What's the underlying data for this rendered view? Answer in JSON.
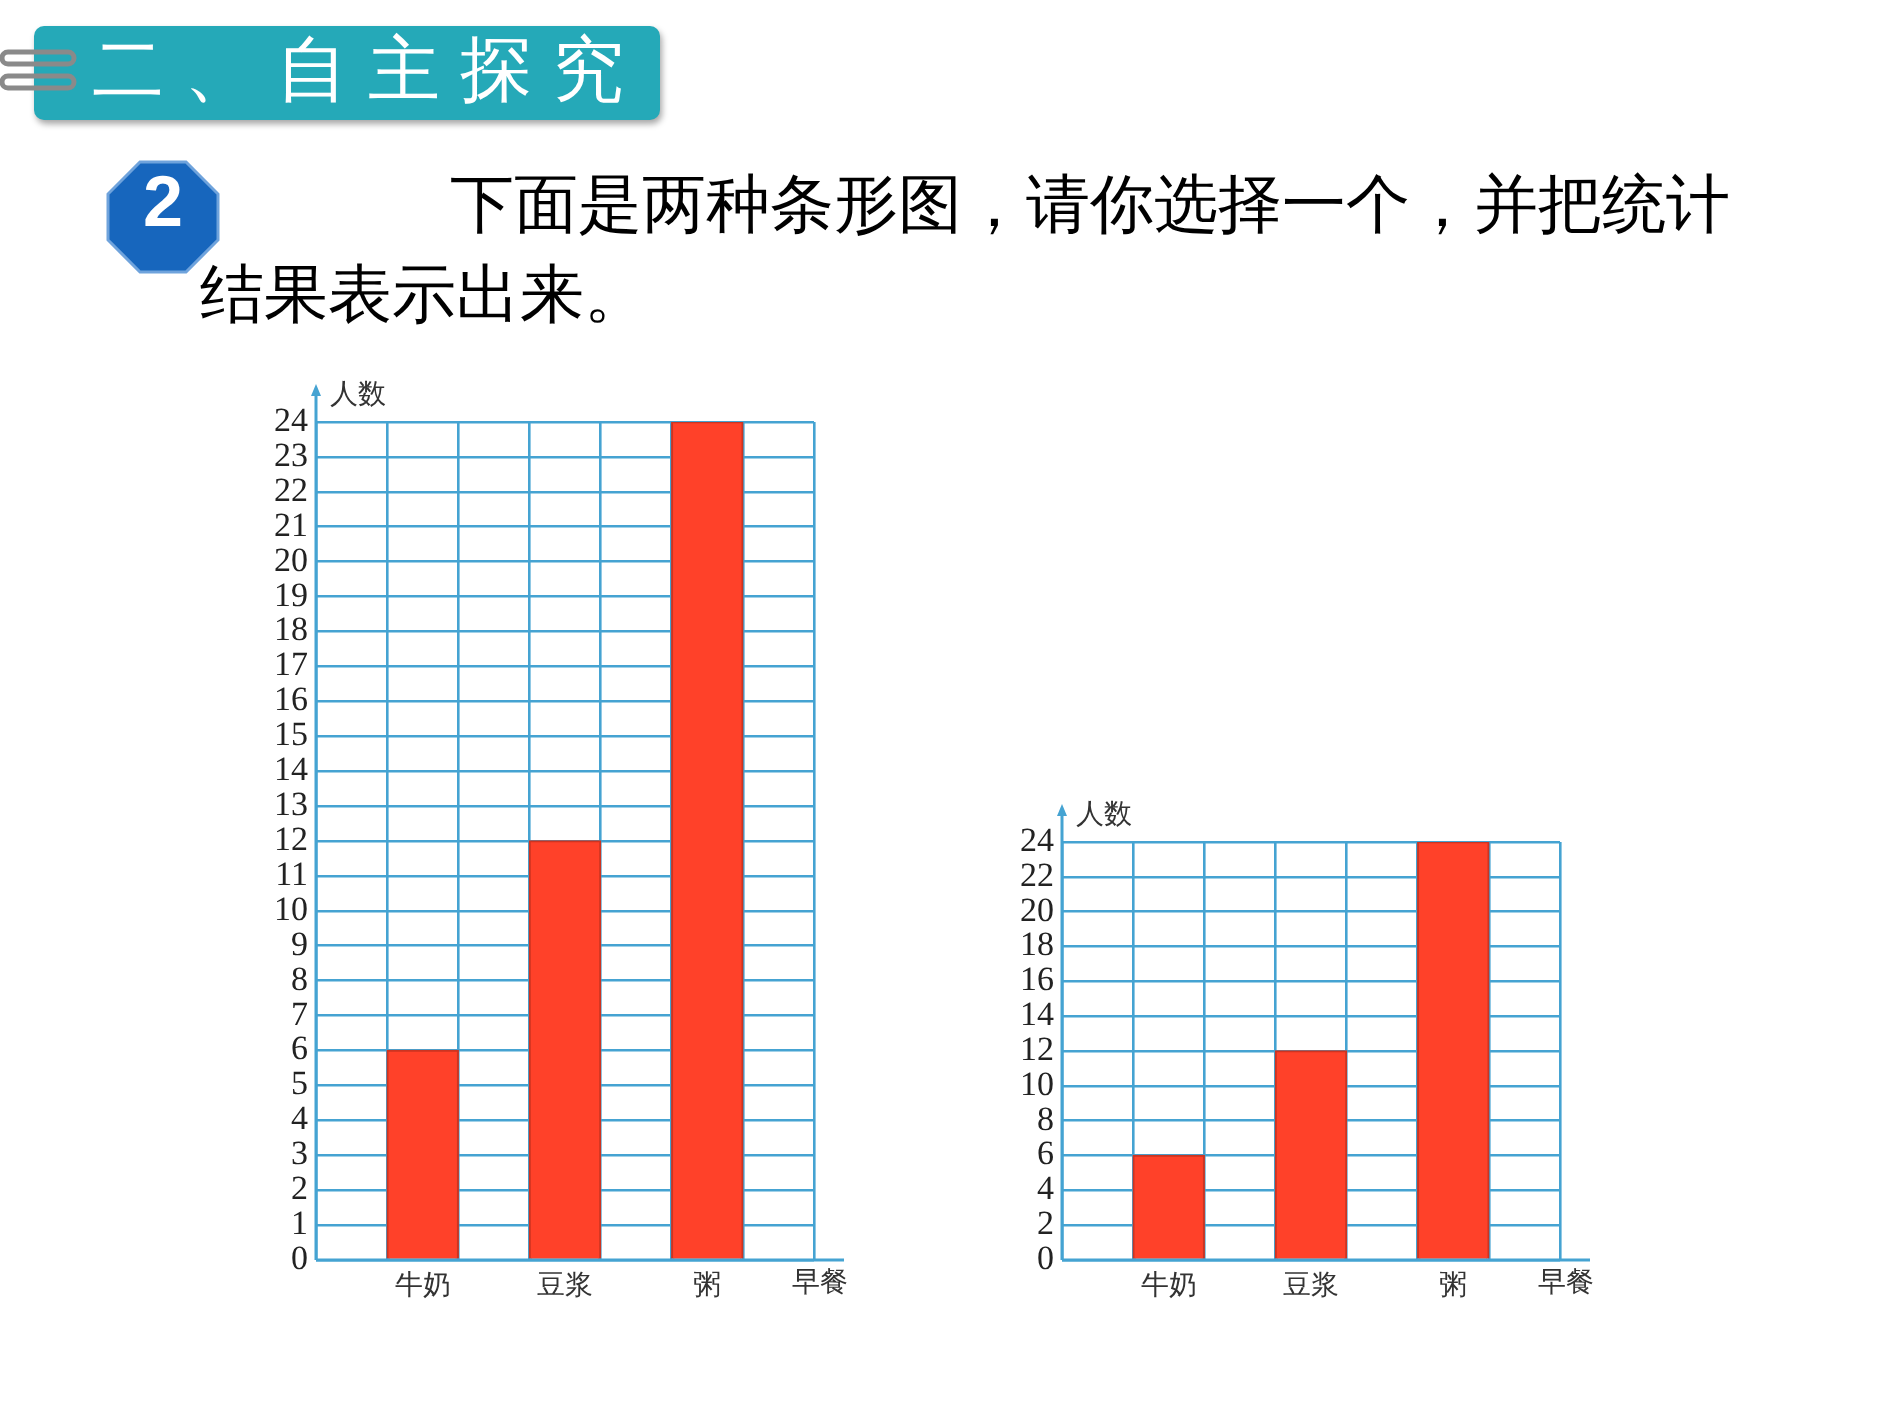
{
  "chart_data": [
    {
      "type": "bar",
      "title": "二、自主探究",
      "subtitle": "下面是两种条形图，请你选择一个，并把统计结果表示出来。",
      "annotations": [
        "2"
      ],
      "categories": [
        null,
        "牛奶",
        null,
        "豆浆",
        null,
        "粥",
        null
      ],
      "values": [
        null,
        6,
        null,
        12,
        null,
        24,
        null
      ],
      "color": "#ff4129",
      "xlabel": "早餐",
      "ylabel": "人数",
      "ylim": [
        0,
        24
      ],
      "yticks": [
        0,
        1,
        2,
        3,
        4,
        5,
        6,
        7,
        8,
        9,
        10,
        11,
        12,
        13,
        14,
        15,
        16,
        17,
        18,
        19,
        20,
        21,
        22,
        23,
        24
      ],
      "grid": true
    },
    {
      "type": "bar",
      "categories": [
        null,
        "牛奶",
        null,
        "豆浆",
        null,
        "粥",
        null
      ],
      "values": [
        null,
        6,
        null,
        12,
        null,
        24,
        null
      ],
      "color": "#ff4129",
      "xlabel": "早餐",
      "ylabel": "人数",
      "ylim": [
        0,
        24
      ],
      "yticks": [
        0,
        2,
        4,
        6,
        8,
        10,
        12,
        14,
        16,
        18,
        20,
        22,
        24
      ],
      "grid": true
    }
  ]
}
